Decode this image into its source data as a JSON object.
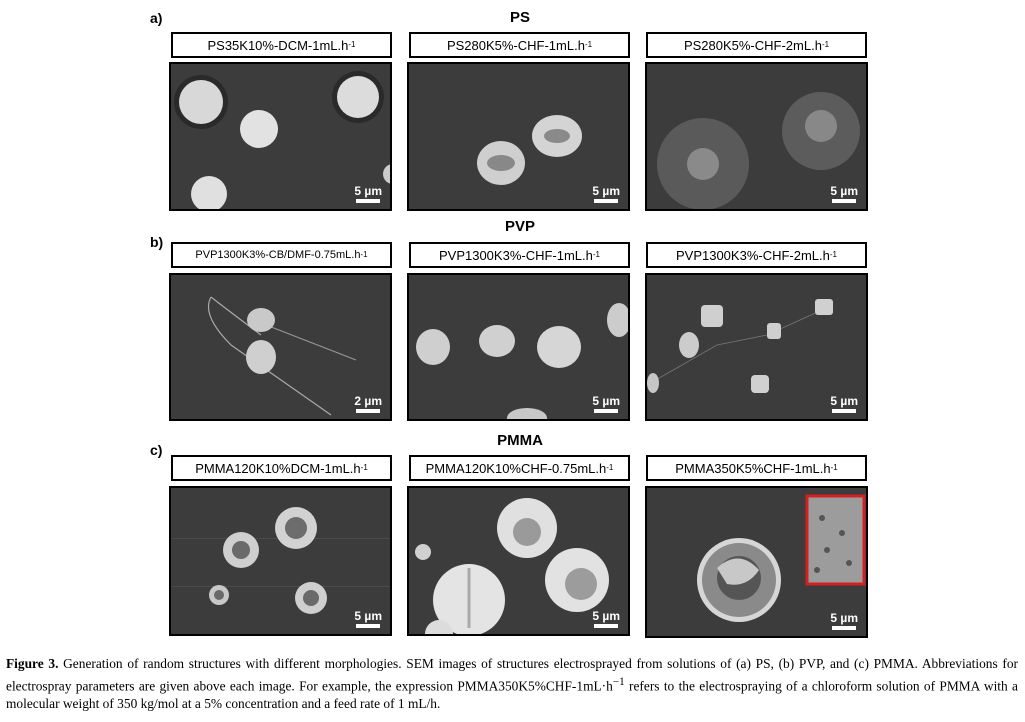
{
  "rows": [
    {
      "letter": "a)",
      "title": "PS",
      "panels": [
        {
          "label": "PS35K10%-DCM-1mL.h",
          "sup": "-1",
          "scale": "5 µm"
        },
        {
          "label": "PS280K5%-CHF-1mL.h",
          "sup": "-1",
          "scale": "5 µm"
        },
        {
          "label": "PS280K5%-CHF-2mL.h",
          "sup": "-1",
          "scale": "5 µm"
        }
      ]
    },
    {
      "letter": "b)",
      "title": "PVP",
      "panels": [
        {
          "label": "PVP1300K3%-CB/DMF-0.75mL.h",
          "sup": "-1",
          "scale": "2 µm"
        },
        {
          "label": "PVP1300K3%-CHF-1mL.h",
          "sup": "-1",
          "scale": "5 µm"
        },
        {
          "label": "PVP1300K3%-CHF-2mL.h",
          "sup": "-1",
          "scale": "5 µm"
        }
      ]
    },
    {
      "letter": "c)",
      "title": "PMMA",
      "panels": [
        {
          "label": "PMMA120K10%DCM-1mL.h",
          "sup": "-1",
          "scale": "5 µm"
        },
        {
          "label": "PMMA120K10%CHF-0.75mL.h",
          "sup": "-1",
          "scale": "5 µm"
        },
        {
          "label": "PMMA350K5%CHF-1mL.h",
          "sup": "-1",
          "scale": "5 µm"
        }
      ]
    }
  ],
  "caption": {
    "figure_label": "Figure 3.",
    "text_1": " Generation of random structures with different morphologies. SEM images of structures electrosprayed from solutions of (a) PS, (b) PVP, and (c) PMMA. Abbreviations for electrospray parameters are given above each image. For example, the expression PMMA350K5%CHF-1mL·h",
    "sup": "−1",
    "text_2": " refers to the electrospraying of a chloroform solution of PMMA with a molecular weight of 350 kg/mol at a 5% concentration and a feed rate of 1 mL/h."
  },
  "colors": {
    "sem_background": "#3c3c3c",
    "inset_border": "#d42020"
  }
}
